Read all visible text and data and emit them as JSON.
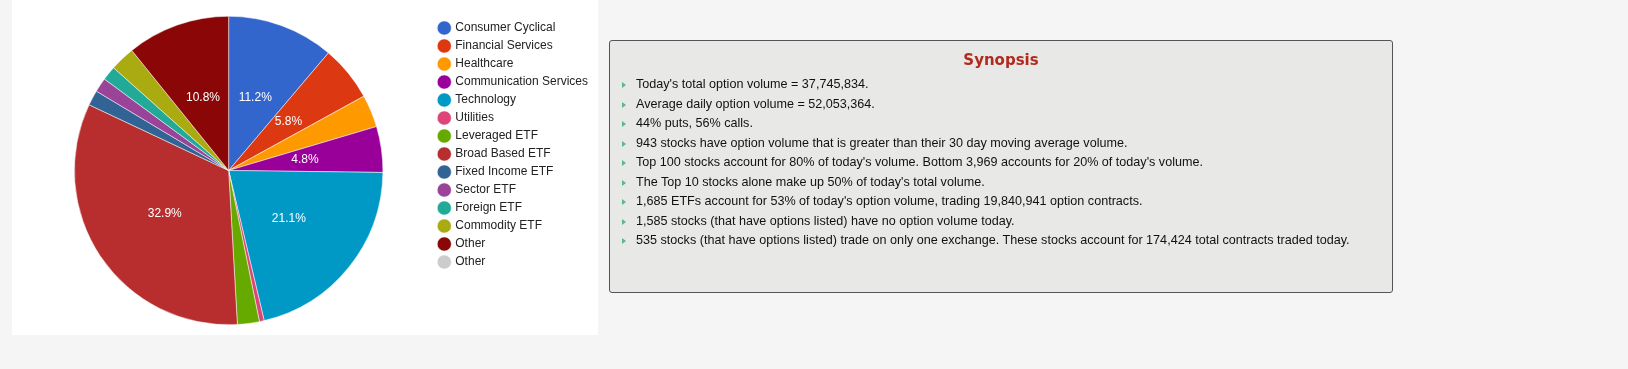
{
  "chart_data": [
    {
      "type": "pie",
      "categories": [
        "Consumer Cyclical",
        "Financial Services",
        "Healthcare",
        "Communication Services",
        "Technology",
        "Utilities",
        "Leveraged ETF",
        "Broad Based ETF",
        "Fixed Income ETF",
        "Sector ETF",
        "Foreign ETF",
        "Commodity ETF",
        "Other",
        "Other"
      ],
      "values": [
        11.2,
        5.8,
        3.4,
        4.8,
        21.1,
        0.5,
        2.3,
        32.9,
        1.6,
        1.5,
        1.5,
        2.6,
        10.8,
        0
      ],
      "colors": [
        "#3366cc",
        "#dc3912",
        "#ff9900",
        "#990099",
        "#0099c6",
        "#dd4477",
        "#66aa00",
        "#b82e2e",
        "#316395",
        "#994499",
        "#22aa99",
        "#aaaa11",
        "#8b0707",
        "#cccccc"
      ],
      "value_labels": [
        "11.2%",
        "5.8%",
        null,
        "4.8%",
        "21.1%",
        null,
        null,
        "32.9%",
        null,
        null,
        null,
        null,
        "10.8%",
        null
      ],
      "legend": "right"
    },
    {
      "type": "other",
      "title": "Synopsis",
      "annotations": [
        "Today's total option volume = 37,745,834.",
        "Average daily option volume = 52,053,364.",
        "44% puts, 56% calls.",
        "943 stocks have option volume that is greater than their 30 day moving average volume.",
        "Top 100 stocks account for 80% of today's volume. Bottom 3,969 accounts for 20% of today's volume.",
        "The Top 10 stocks alone make up 50% of today's total volume.",
        "1,685 ETFs account for 53% of today's option volume, trading 19,840,941 option contracts.",
        "1,585 stocks (that have options listed) have no option volume today.",
        "535 stocks (that have options listed) trade on only one exchange. These stocks account for 174,424 total contracts traded today."
      ]
    }
  ]
}
